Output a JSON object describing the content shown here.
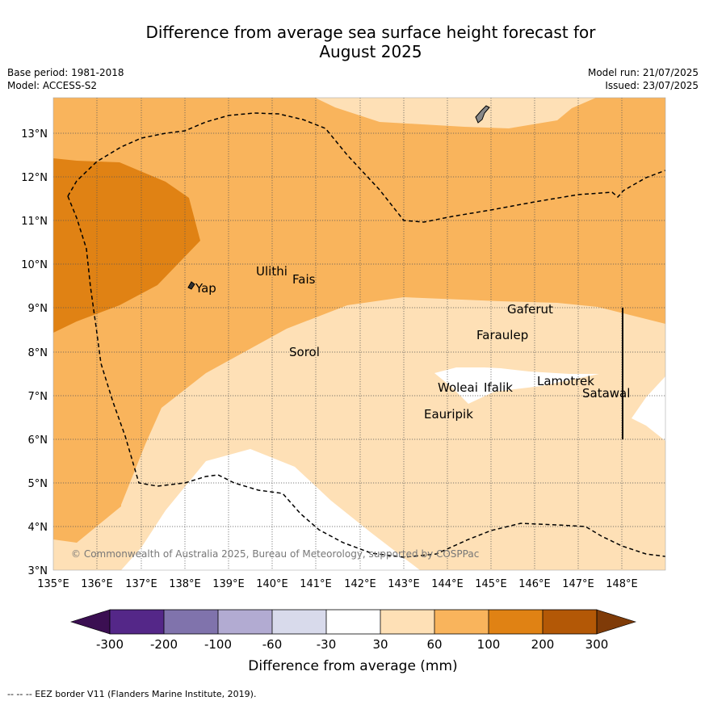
{
  "title_line1": "Difference from average sea surface height forecast for",
  "title_line2": "August 2025",
  "base_period": "Base period: 1981-2018",
  "model": "Model: ACCESS-S2",
  "model_run": "Model run: 21/07/2025",
  "issued": "Issued: 23/07/2025",
  "lat_labels": [
    "3°N",
    "4°N",
    "5°N",
    "6°N",
    "7°N",
    "8°N",
    "9°N",
    "10°N",
    "11°N",
    "12°N",
    "13°N"
  ],
  "lon_labels": [
    "135°E",
    "136°E",
    "137°E",
    "138°E",
    "139°E",
    "140°E",
    "141°E",
    "142°E",
    "143°E",
    "144°E",
    "145°E",
    "146°E",
    "147°E",
    "148°E"
  ],
  "places": [
    "Yap",
    "Ulithi",
    "Fais",
    "Sorol",
    "Gaferut",
    "Faraulep",
    "Woleai",
    "Ifalik",
    "Lamotrek",
    "Satawal",
    "Eauripik"
  ],
  "copyright": "© Commonwealth of Australia 2025, Bureau of Meteorology, supported by COSPPac",
  "colorbar_ticks": [
    "-300",
    "-200",
    "-100",
    "-60",
    "-30",
    "30",
    "60",
    "100",
    "200",
    "300"
  ],
  "colorbar_label": "Difference from average (mm)",
  "footer": "--  --  -- EEZ border V11 (Flanders Marine Institute, 2019).",
  "colors": {
    "purple_extend": "#3b0f52",
    "purple_dark": "#542788",
    "purple_mid": "#8073ac",
    "purple_light": "#b2abd2",
    "purple_pale": "#d8daeb",
    "neutral": "#ffffff",
    "orange_pale": "#fee0b6",
    "orange_light": "#f9b45c",
    "orange_mid": "#e08214",
    "orange_dark": "#b35806",
    "orange_extend": "#7f3b08"
  }
}
